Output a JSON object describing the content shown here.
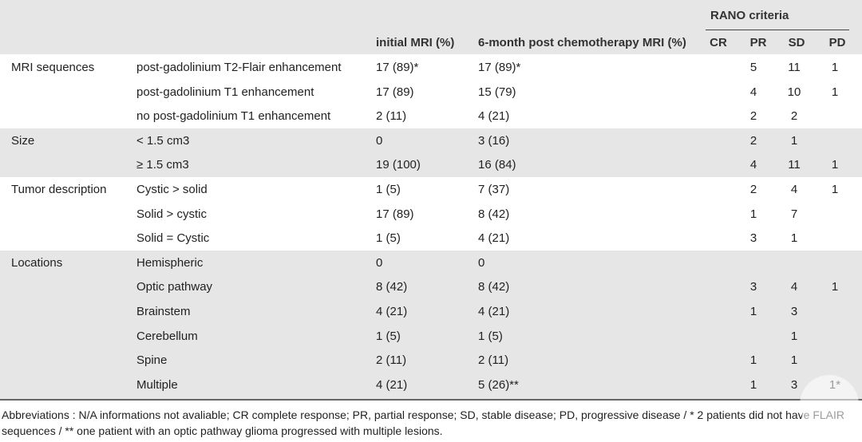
{
  "header": {
    "rano_group": "RANO criteria",
    "initial": "initial MRI (%)",
    "post": "6-month post chemotherapy MRI (%)",
    "cr": "CR",
    "pr": "PR",
    "sd": "SD",
    "pd": "PD"
  },
  "rows": [
    {
      "cat": "MRI sequences",
      "sub": "post-gadolinium T2-Flair enhancement",
      "initial": "17 (89)*",
      "post": "17 (89)*",
      "cr": "",
      "pr": "5",
      "sd": "11",
      "pd": "1"
    },
    {
      "cat": "",
      "sub": "post-gadolinium T1 enhancement",
      "initial": "17 (89)",
      "post": "15 (79)",
      "cr": "",
      "pr": "4",
      "sd": "10",
      "pd": "1"
    },
    {
      "cat": "",
      "sub": "no post-gadolinium T1 enhancement",
      "initial": "2 (11)",
      "post": "4 (21)",
      "cr": "",
      "pr": "2",
      "sd": "2",
      "pd": ""
    },
    {
      "cat": "Size",
      "sub": "< 1.5 cm3",
      "initial": "0",
      "post": "3 (16)",
      "cr": "",
      "pr": "2",
      "sd": "1",
      "pd": ""
    },
    {
      "cat": "",
      "sub": "≥ 1.5 cm3",
      "initial": "19 (100)",
      "post": "16 (84)",
      "cr": "",
      "pr": "4",
      "sd": "11",
      "pd": "1"
    },
    {
      "cat": "Tumor description",
      "sub": "Cystic > solid",
      "initial": "1 (5)",
      "post": "7 (37)",
      "cr": "",
      "pr": "2",
      "sd": "4",
      "pd": "1"
    },
    {
      "cat": "",
      "sub": "Solid > cystic",
      "initial": "17 (89)",
      "post": "8 (42)",
      "cr": "",
      "pr": "1",
      "sd": "7",
      "pd": ""
    },
    {
      "cat": "",
      "sub": "Solid = Cystic",
      "initial": "1 (5)",
      "post": "4 (21)",
      "cr": "",
      "pr": "3",
      "sd": "1",
      "pd": ""
    },
    {
      "cat": "Locations",
      "sub": "Hemispheric",
      "initial": "0",
      "post": "0",
      "cr": "",
      "pr": "",
      "sd": "",
      "pd": ""
    },
    {
      "cat": "",
      "sub": "Optic pathway",
      "initial": "8 (42)",
      "post": "8 (42)",
      "cr": "",
      "pr": "3",
      "sd": "4",
      "pd": "1"
    },
    {
      "cat": "",
      "sub": "Brainstem",
      "initial": "4 (21)",
      "post": "4 (21)",
      "cr": "",
      "pr": "1",
      "sd": "3",
      "pd": ""
    },
    {
      "cat": "",
      "sub": "Cerebellum",
      "initial": "1 (5)",
      "post": "1 (5)",
      "cr": "",
      "pr": "",
      "sd": "1",
      "pd": ""
    },
    {
      "cat": "",
      "sub": "Spine",
      "initial": "2 (11)",
      "post": "2 (11)",
      "cr": "",
      "pr": "1",
      "sd": "1",
      "pd": ""
    },
    {
      "cat": "",
      "sub": "Multiple",
      "initial": "4 (21)",
      "post": "5 (26)**",
      "cr": "",
      "pr": "1",
      "sd": "3",
      "pd": "1*"
    }
  ],
  "footnote": "Abbreviations : N/A informations not avaliable; CR complete response; PR, partial response; SD, stable disease; PD, progressive disease / * 2 patients did not have FLAIR sequences / ** one patient with an optic pathway glioma progressed with multiple lesions."
}
